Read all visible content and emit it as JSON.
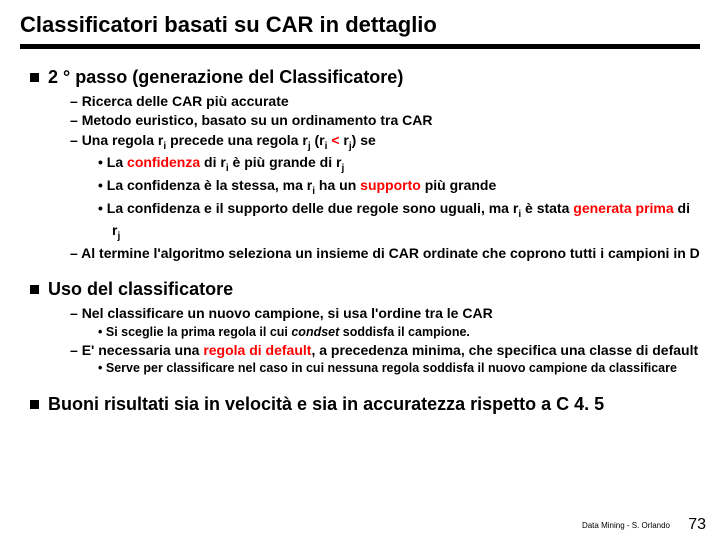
{
  "title": "Classificatori basati su CAR in dettaglio",
  "colors": {
    "accent": "#ff0000",
    "text": "#000000",
    "bg": "#ffffff"
  },
  "s1": {
    "head": "2 ° passo (generazione del Classificatore)",
    "d1": "Ricerca delle CAR più accurate",
    "d2": "Metodo euristico, basato su un ordinamento tra CAR",
    "d3a": "Una regola r",
    "d3b": " precede una regola r",
    "d3c": " (r",
    "d3d": " r",
    "d3e": ") se",
    "lt": " < ",
    "b1a": "La ",
    "b1b": "confidenza",
    "b1c": " di r",
    "b1d": " è più grande di r",
    "b2a": "La confidenza è la stessa, ma r",
    "b2b": " ha un ",
    "b2c": "supporto",
    "b2d": " più grande",
    "b3a": "La confidenza e il supporto delle due regole sono uguali, ma r",
    "b3b": " è stata ",
    "b3c": "generata prima",
    "b3d": " di r",
    "d4": "Al termine l'algoritmo seleziona un insieme di CAR ordinate che coprono tutti i campioni in D"
  },
  "s2": {
    "head": "Uso del classificatore",
    "d1": "Nel classificare un nuovo campione, si usa l'ordine tra le CAR",
    "b1a": "Si sceglie la prima regola il cui ",
    "b1b": "condset",
    "b1c": " soddisfa il campione.",
    "d2a": "E' necessaria una ",
    "d2b": "regola di default",
    "d2c": ", a precedenza minima, che specifica una classe di default",
    "b2": "Serve per classificare nel caso in cui nessuna regola soddisfa il nuovo campione da classificare"
  },
  "s3": {
    "head": "Buoni risultati sia in velocità e sia in accuratezza rispetto a C 4. 5"
  },
  "sub_i": "i",
  "sub_j": "j",
  "footer": "Data Mining - S. Orlando",
  "page": "73"
}
